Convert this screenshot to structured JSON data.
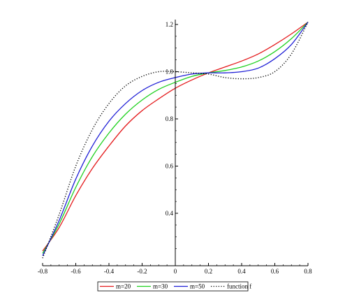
{
  "chart_data": {
    "type": "line",
    "title": "",
    "xlabel": "",
    "ylabel": "",
    "xlim": [
      -0.8,
      0.8
    ],
    "ylim": [
      0.2,
      1.22
    ],
    "grid": false,
    "legend_position": "bottom",
    "x_ticks": [
      {
        "value": -0.8,
        "label": "-0.8"
      },
      {
        "value": -0.6,
        "label": "-0.6"
      },
      {
        "value": -0.4,
        "label": "-0.4"
      },
      {
        "value": -0.2,
        "label": "-0.2"
      },
      {
        "value": 0,
        "label": "0"
      },
      {
        "value": 0.2,
        "label": "0.2"
      },
      {
        "value": 0.4,
        "label": "0.4"
      },
      {
        "value": 0.6,
        "label": "0.6"
      },
      {
        "value": 0.8,
        "label": "0.8"
      }
    ],
    "y_ticks": [
      {
        "value": 0.4,
        "label": "0.4"
      },
      {
        "value": 0.6,
        "label": "0.6"
      },
      {
        "value": 0.8,
        "label": "0.8"
      },
      {
        "value": 1.0,
        "label": "1.0"
      },
      {
        "value": 1.2,
        "label": "1.2"
      }
    ],
    "series": [
      {
        "name": "m=20",
        "color": "#e41a1c",
        "dash": "solid",
        "x": [
          -0.8,
          -0.7,
          -0.6,
          -0.5,
          -0.4,
          -0.3,
          -0.2,
          -0.1,
          0,
          0.1,
          0.2,
          0.3,
          0.4,
          0.5,
          0.6,
          0.7,
          0.8
        ],
        "y": [
          0.24,
          0.34,
          0.475,
          0.59,
          0.685,
          0.77,
          0.835,
          0.885,
          0.93,
          0.965,
          0.995,
          1.02,
          1.045,
          1.075,
          1.115,
          1.16,
          1.21
        ]
      },
      {
        "name": "m=30",
        "color": "#1fd11f",
        "dash": "solid",
        "x": [
          -0.8,
          -0.7,
          -0.6,
          -0.5,
          -0.4,
          -0.3,
          -0.2,
          -0.1,
          0,
          0.1,
          0.2,
          0.3,
          0.4,
          0.5,
          0.6,
          0.7,
          0.8
        ],
        "y": [
          0.23,
          0.355,
          0.51,
          0.64,
          0.74,
          0.82,
          0.88,
          0.925,
          0.955,
          0.98,
          0.995,
          1.005,
          1.02,
          1.045,
          1.085,
          1.14,
          1.21
        ]
      },
      {
        "name": "m=50",
        "color": "#1f1fd6",
        "dash": "solid",
        "x": [
          -0.8,
          -0.7,
          -0.6,
          -0.5,
          -0.4,
          -0.3,
          -0.2,
          -0.1,
          0,
          0.1,
          0.2,
          0.3,
          0.4,
          0.5,
          0.6,
          0.7,
          0.8
        ],
        "y": [
          0.22,
          0.37,
          0.545,
          0.685,
          0.79,
          0.865,
          0.92,
          0.955,
          0.975,
          0.99,
          0.995,
          0.995,
          1.0,
          1.015,
          1.055,
          1.115,
          1.21
        ]
      },
      {
        "name": "function f",
        "color": "#000000",
        "dash": "dotted",
        "x": [
          -0.8,
          -0.7,
          -0.6,
          -0.5,
          -0.4,
          -0.3,
          -0.2,
          -0.1,
          0,
          0.1,
          0.2,
          0.3,
          0.4,
          0.5,
          0.6,
          0.7,
          0.8
        ],
        "y": [
          0.21,
          0.395,
          0.6,
          0.755,
          0.865,
          0.94,
          0.98,
          1.0,
          1.0,
          0.995,
          0.99,
          0.975,
          0.97,
          0.975,
          1.0,
          1.075,
          1.21
        ]
      }
    ]
  }
}
